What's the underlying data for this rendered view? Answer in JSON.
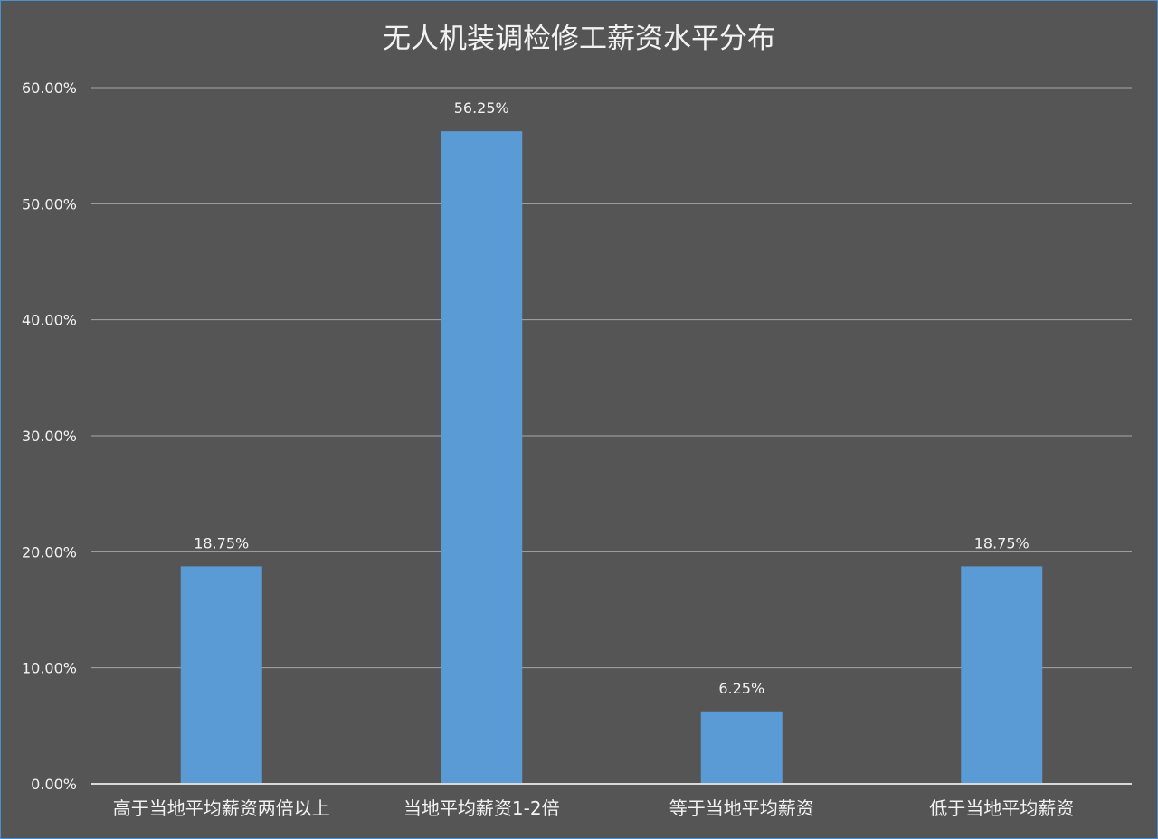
{
  "chart_data": {
    "type": "bar",
    "title": "无人机装调检修工薪资水平分布",
    "categories": [
      "高于当地平均薪资两倍以上",
      "当地平均薪资1-2倍",
      "等于当地平均薪资",
      "低于当地平均薪资"
    ],
    "values": [
      18.75,
      56.25,
      6.25,
      18.75
    ],
    "data_labels": [
      "18.75%",
      "56.25%",
      "6.25%",
      "18.75%"
    ],
    "y_ticks": [
      0,
      10,
      20,
      30,
      40,
      50,
      60
    ],
    "y_tick_labels": [
      "0.00%",
      "10.00%",
      "20.00%",
      "30.00%",
      "40.00%",
      "50.00%",
      "60.00%"
    ],
    "ylim": [
      0,
      60
    ],
    "grid": true,
    "legend": "none",
    "colors": {
      "background": "#555555",
      "bar": "#5b9bd5",
      "grid": "#a6a6a6",
      "axis": "#d9d9d9",
      "text": "#f2f2f2"
    }
  }
}
